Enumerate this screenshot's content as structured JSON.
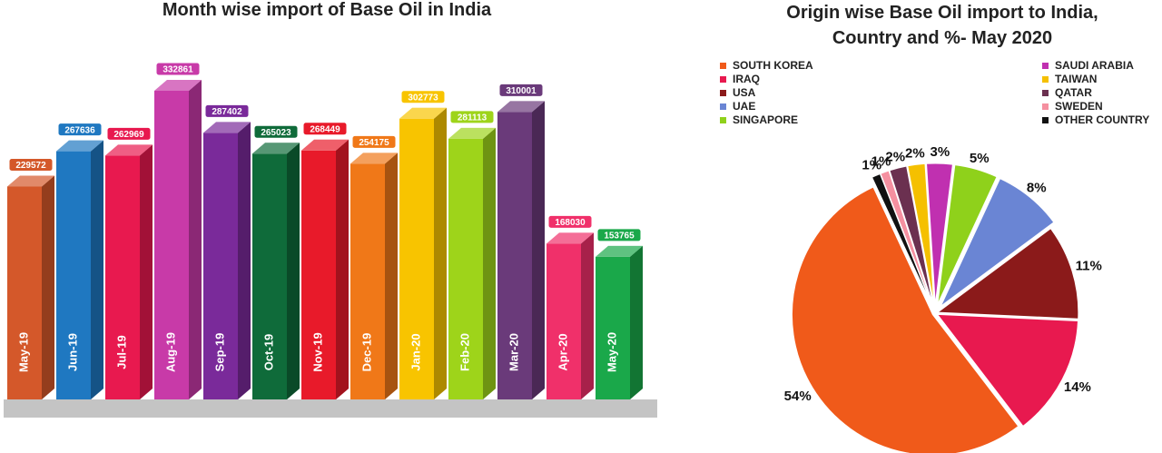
{
  "chart_data": [
    {
      "type": "bar3d",
      "title": "Month wise import of Base Oil in India",
      "categories": [
        "May-19",
        "Jun-19",
        "Jul-19",
        "Aug-19",
        "Sep-19",
        "Oct-19",
        "Nov-19",
        "Dec-19",
        "Jan-20",
        "Feb-20",
        "Mar-20",
        "Apr-20",
        "May-20"
      ],
      "values": [
        229572,
        267636,
        262969,
        332861,
        287402,
        265023,
        268449,
        254175,
        302773,
        281113,
        310001,
        168030,
        153765
      ],
      "colors": [
        "#d4582a",
        "#1f78c1",
        "#e8194f",
        "#c83aa8",
        "#7a2a9a",
        "#0f6b3a",
        "#e81a2a",
        "#f07818",
        "#f8c400",
        "#9ed41a",
        "#6a3a7a",
        "#f0306a",
        "#1aa84a"
      ]
    },
    {
      "type": "pie",
      "title": "Origin wise Base Oil import to India, Country and %- May 2020",
      "categories": [
        "SOUTH KOREA",
        "IRAQ",
        "USA",
        "UAE",
        "SINGAPORE",
        "SAUDI ARABIA",
        "TAIWAN",
        "QATAR",
        "SWEDEN",
        "OTHER COUNTRY"
      ],
      "values": [
        54,
        14,
        11,
        8,
        5,
        3,
        2,
        2,
        1,
        1
      ],
      "value_labels": [
        "54%",
        "14%",
        "11%",
        "8%",
        "5%",
        "3%",
        "2%",
        "2%",
        "1%",
        "1%"
      ],
      "colors": [
        "#f05a1a",
        "#e8194f",
        "#8b1a1a",
        "#6a85d4",
        "#8fd11b",
        "#c030b0",
        "#f5c000",
        "#6b3050",
        "#f590a0",
        "#111111"
      ]
    }
  ]
}
